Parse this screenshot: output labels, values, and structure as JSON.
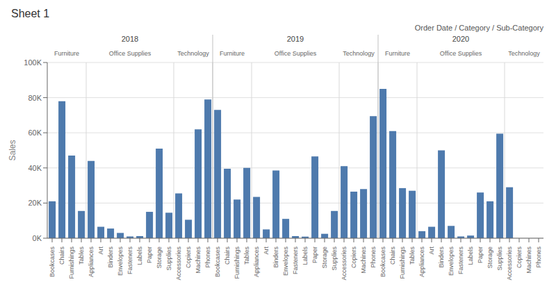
{
  "chart_data": {
    "type": "bar",
    "title": "Sheet 1",
    "xlabel": "Order Date / Category / Sub-Category",
    "ylabel": "Sales",
    "color": "#4e7aad",
    "grid": true,
    "categories": [
      "Bookcases",
      "Chairs",
      "Furnishings",
      "Tables",
      "Appliances",
      "Art",
      "Binders",
      "Envelopes",
      "Fasteners",
      "Labels",
      "Paper",
      "Storage",
      "Supplies",
      "Accessories",
      "Copiers",
      "Machines",
      "Phones",
      "Bookcases",
      "Chairs",
      "Furnishings",
      "Tables",
      "Appliances",
      "Art",
      "Binders",
      "Envelopes",
      "Fasteners",
      "Labels",
      "Paper",
      "Storage",
      "Supplies",
      "Accessories",
      "Copiers",
      "Machines",
      "Phones",
      "Bookcases",
      "Chairs",
      "Furnishings",
      "Tables",
      "Appliances",
      "Art",
      "Binders",
      "Envelopes",
      "Fasteners",
      "Labels",
      "Paper",
      "Storage",
      "Supplies",
      "Accessories",
      "Copiers",
      "Machines",
      "Phones"
    ],
    "category_groups": [
      [
        "2018",
        "2018",
        "2018",
        "2018",
        "2018",
        "2018",
        "2018",
        "2018",
        "2018",
        "2018",
        "2018",
        "2018",
        "2018",
        "2018",
        "2018",
        "2018",
        "2018",
        "2019",
        "2019",
        "2019",
        "2019",
        "2019",
        "2019",
        "2019",
        "2019",
        "2019",
        "2019",
        "2019",
        "2019",
        "2019",
        "2019",
        "2019",
        "2019",
        "2019",
        "2020",
        "2020",
        "2020",
        "2020",
        "2020",
        "2020",
        "2020",
        "2020",
        "2020",
        "2020",
        "2020",
        "2020",
        "2020",
        "2020",
        "2020",
        "2020",
        "2020"
      ],
      [
        "Furniture",
        "Furniture",
        "Furniture",
        "Furniture",
        "Office Supplies",
        "Office Supplies",
        "Office Supplies",
        "Office Supplies",
        "Office Supplies",
        "Office Supplies",
        "Office Supplies",
        "Office Supplies",
        "Office Supplies",
        "Technology",
        "Technology",
        "Technology",
        "Technology",
        "Furniture",
        "Furniture",
        "Furniture",
        "Furniture",
        "Office Supplies",
        "Office Supplies",
        "Office Supplies",
        "Office Supplies",
        "Office Supplies",
        "Office Supplies",
        "Office Supplies",
        "Office Supplies",
        "Office Supplies",
        "Technology",
        "Technology",
        "Technology",
        "Technology",
        "Furniture",
        "Furniture",
        "Furniture",
        "Furniture",
        "Office Supplies",
        "Office Supplies",
        "Office Supplies",
        "Office Supplies",
        "Office Supplies",
        "Office Supplies",
        "Office Supplies",
        "Office Supplies",
        "Office Supplies",
        "Technology",
        "Technology",
        "Technology",
        "Technology"
      ]
    ],
    "values": [
      21000,
      78000,
      47000,
      15500,
      44000,
      6500,
      5500,
      3000,
      1000,
      1200,
      15000,
      51000,
      14500,
      25500,
      10500,
      62000,
      79000,
      73000,
      39500,
      22000,
      40000,
      23500,
      5000,
      38500,
      11000,
      1200,
      900,
      46500,
      2500,
      15500,
      41000,
      26500,
      28000,
      69500,
      85000,
      61000,
      28500,
      27000,
      4000,
      6500,
      50000,
      7000,
      1000,
      1500,
      26000,
      21000,
      59500,
      29000,
      0,
      0,
      0
    ],
    "ylim": [
      0,
      100000
    ],
    "yticks": [
      {
        "value": 0,
        "label": "0K"
      },
      {
        "value": 20000,
        "label": "20K"
      },
      {
        "value": 40000,
        "label": "40K"
      },
      {
        "value": 60000,
        "label": "60K"
      },
      {
        "value": 80000,
        "label": "80K"
      },
      {
        "value": 100000,
        "label": "100K"
      }
    ]
  }
}
